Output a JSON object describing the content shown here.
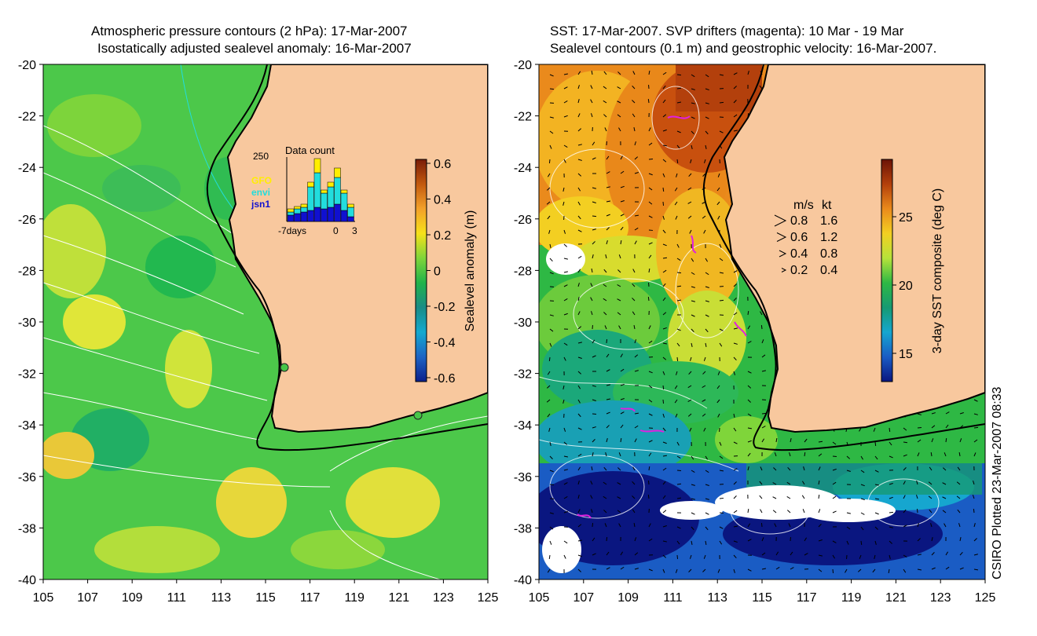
{
  "left_panel": {
    "title_line1": "Atmospheric pressure contours (2 hPa): 17-Mar-2007",
    "title_line2": "Isostatically adjusted sealevel anomaly: 16-Mar-2007",
    "y_ticks": [
      "-20",
      "-22",
      "-24",
      "-26",
      "-28",
      "-30",
      "-32",
      "-34",
      "-36",
      "-38",
      "-40"
    ],
    "x_ticks": [
      "105",
      "107",
      "109",
      "111",
      "113",
      "115",
      "117",
      "119",
      "121",
      "123",
      "125"
    ],
    "colorbar": {
      "label": "Sealevel anomaly (m)",
      "ticks": [
        "0.6",
        "0.4",
        "0.2",
        "0",
        "-0.2",
        "-0.4",
        "-0.6"
      ],
      "colors": [
        "#7a1c08",
        "#c35a0e",
        "#f3a12a",
        "#f6e11a",
        "#7fd53a",
        "#20b34a",
        "#1a8c86",
        "#14a9cf",
        "#1d64c4",
        "#0b1f8c"
      ]
    },
    "inset": {
      "title": "Data count",
      "ymax_label": "250",
      "xlabels": [
        "-7days",
        "0",
        "3"
      ],
      "legend": [
        {
          "label": "GFO",
          "color": "#ffee00"
        },
        {
          "label": "envi",
          "color": "#22dddd"
        },
        {
          "label": "jsn1",
          "color": "#1010d0"
        }
      ]
    }
  },
  "right_panel": {
    "title_line1": "SST: 17-Mar-2007. SVP drifters (magenta): 10 Mar - 19 Mar",
    "title_line2": "Sealevel contours (0.1 m) and geostrophic velocity: 16-Mar-2007.",
    "y_ticks": [
      "-20",
      "-22",
      "-24",
      "-26",
      "-28",
      "-30",
      "-32",
      "-34",
      "-36",
      "-38",
      "-40"
    ],
    "x_ticks": [
      "105",
      "107",
      "109",
      "111",
      "113",
      "115",
      "117",
      "119",
      "121",
      "123",
      "125"
    ],
    "colorbar": {
      "label": "3-day SST composite (deg C)",
      "ticks": [
        "25",
        "20",
        "15"
      ],
      "colors": [
        "#6b1306",
        "#b3400c",
        "#ea8a1c",
        "#f3cf22",
        "#b6e23a",
        "#2eb844",
        "#169a72",
        "#16a6cf",
        "#1a5cc4",
        "#0a1680"
      ]
    },
    "velocity_legend": {
      "header_ms": "m/s",
      "header_kt": "kt",
      "rows": [
        {
          "ms": "0.8",
          "kt": "1.6"
        },
        {
          "ms": "0.6",
          "kt": "1.2"
        },
        {
          "ms": "0.4",
          "kt": "0.8"
        },
        {
          "ms": "0.2",
          "kt": "0.4"
        }
      ]
    }
  },
  "credit": "CSIRO Plotted 23-Mar-2007 08:33",
  "colors": {
    "land": "#f8c89e",
    "ocean_green": "#47c648",
    "coast": "#000000"
  }
}
